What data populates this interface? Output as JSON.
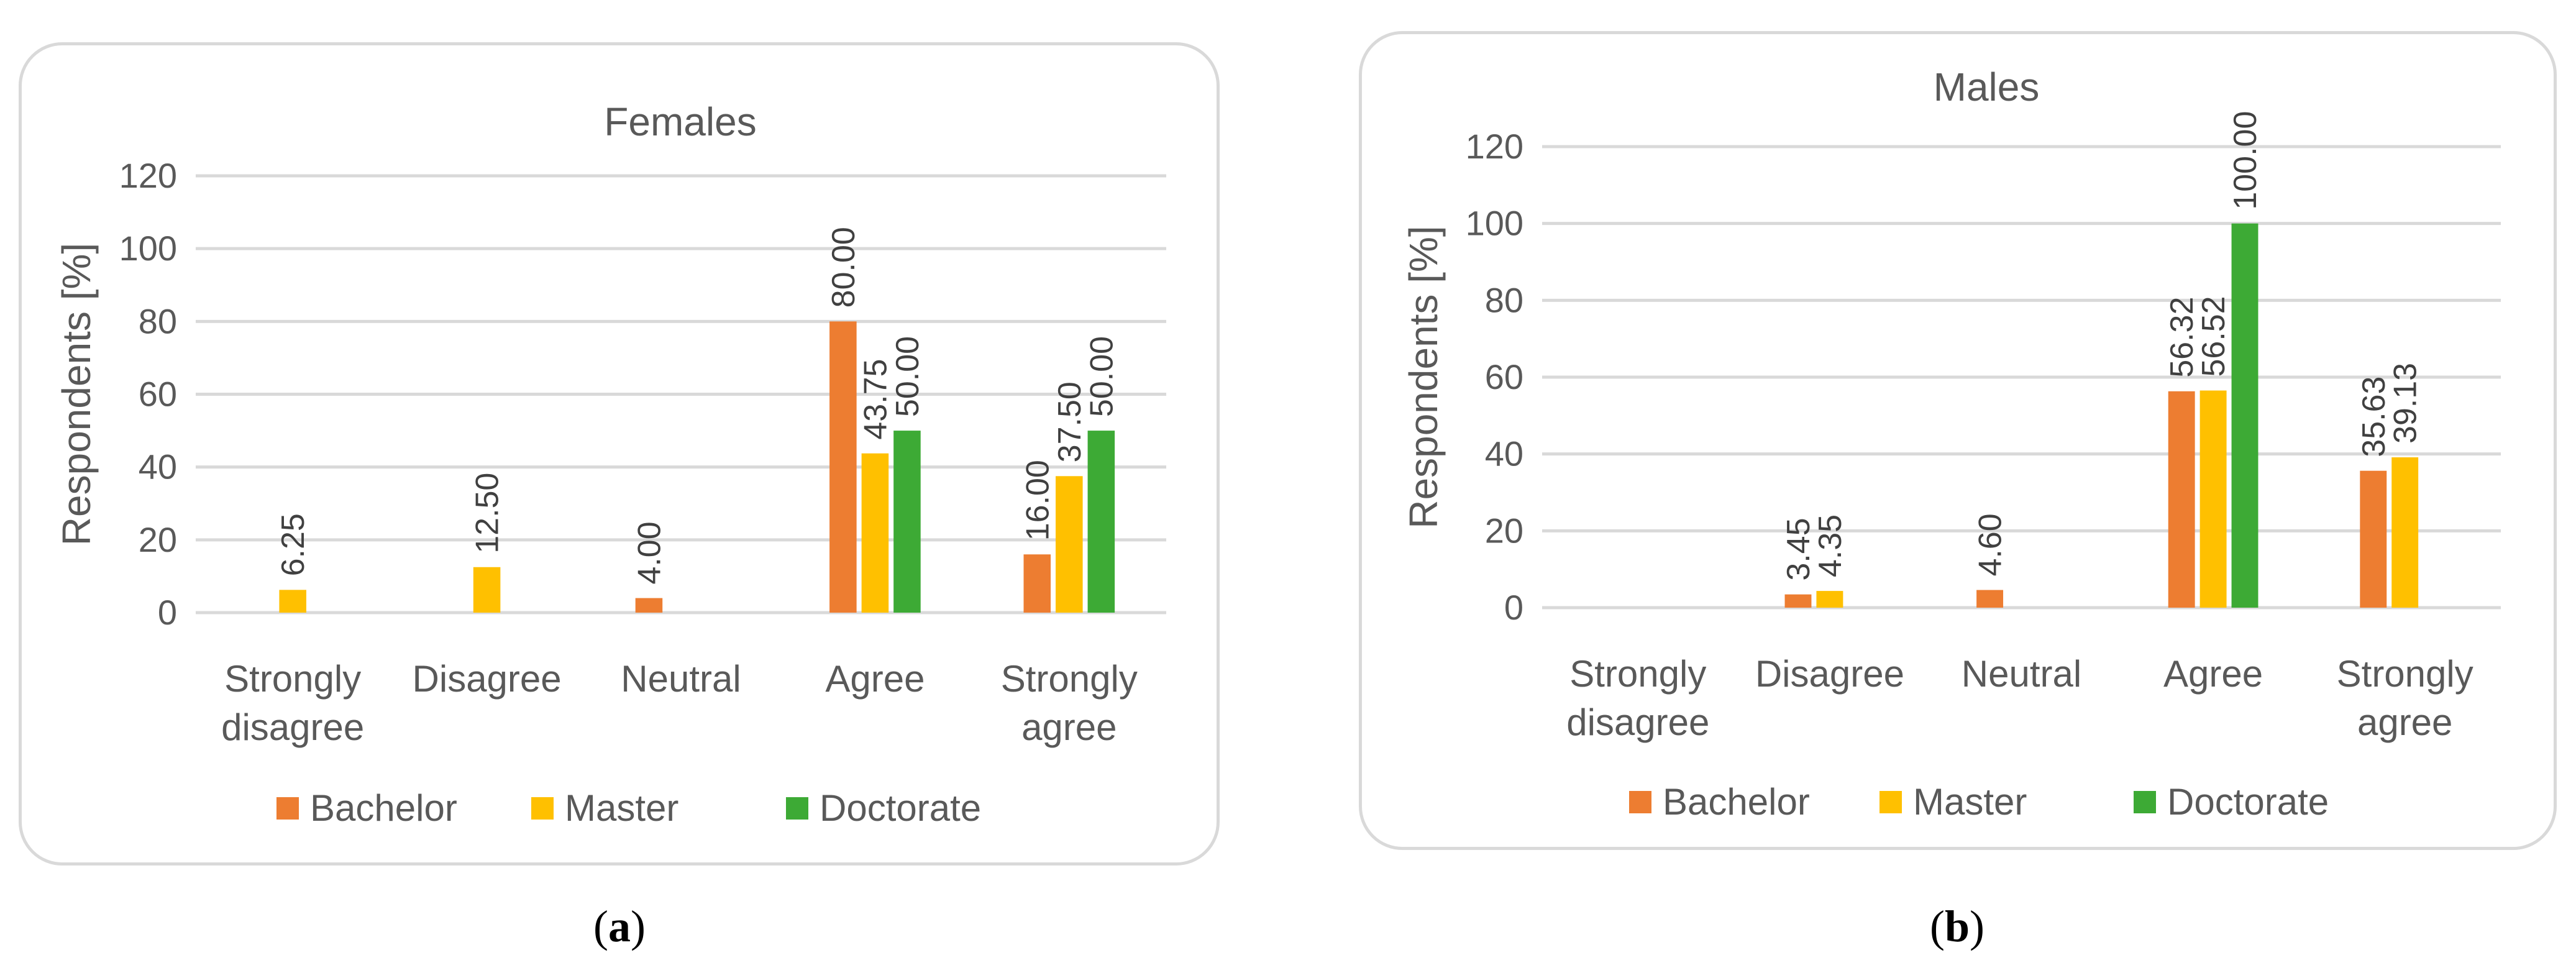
{
  "chart_data": [
    {
      "type": "bar",
      "title": "Females",
      "xlabel": "",
      "ylabel": "Respondents [%]",
      "ylim": [
        0,
        120
      ],
      "yticks": [
        "0",
        "20",
        "40",
        "60",
        "80",
        "100",
        "120"
      ],
      "grid": true,
      "legend_position": "bottom",
      "categories": [
        [
          "Strongly",
          "disagree"
        ],
        [
          "Disagree"
        ],
        [
          "Neutral"
        ],
        [
          "Agree"
        ],
        [
          "Strongly",
          "agree"
        ]
      ],
      "series": [
        {
          "name": "Bachelor",
          "color": "#ed7d31",
          "values": [
            null,
            null,
            4.0,
            80.0,
            16.0
          ],
          "labels": [
            null,
            null,
            "4.00",
            "80.00",
            "16.00"
          ]
        },
        {
          "name": "Master",
          "color": "#ffc000",
          "values": [
            6.25,
            12.5,
            null,
            43.75,
            37.5
          ],
          "labels": [
            "6.25",
            "12.50",
            null,
            "43.75",
            "37.50"
          ]
        },
        {
          "name": "Doctorate",
          "color": "#3daa35",
          "values": [
            null,
            null,
            null,
            50.0,
            50.0
          ],
          "labels": [
            null,
            null,
            null,
            "50.00",
            "50.00"
          ]
        }
      ],
      "caption": "(a)",
      "caption_letter": "a"
    },
    {
      "type": "bar",
      "title": "Males",
      "xlabel": "",
      "ylabel": "Respondents [%]",
      "ylim": [
        0,
        120
      ],
      "yticks": [
        "0",
        "20",
        "40",
        "60",
        "80",
        "100",
        "120"
      ],
      "grid": true,
      "legend_position": "bottom",
      "categories": [
        [
          "Strongly",
          "disagree"
        ],
        [
          "Disagree"
        ],
        [
          "Neutral"
        ],
        [
          "Agree"
        ],
        [
          "Strongly",
          "agree"
        ]
      ],
      "series": [
        {
          "name": "Bachelor",
          "color": "#ed7d31",
          "values": [
            null,
            3.45,
            4.6,
            56.32,
            35.63
          ],
          "labels": [
            null,
            "3.45",
            "4.60",
            "56.32",
            "35.63"
          ]
        },
        {
          "name": "Master",
          "color": "#ffc000",
          "values": [
            null,
            4.35,
            null,
            56.52,
            39.13
          ],
          "labels": [
            null,
            "4.35",
            null,
            "56.52",
            "39.13"
          ]
        },
        {
          "name": "Doctorate",
          "color": "#3daa35",
          "values": [
            null,
            null,
            null,
            100.0,
            null
          ],
          "labels": [
            null,
            null,
            null,
            "100.00",
            null
          ]
        }
      ],
      "caption": "(b)",
      "caption_letter": "b"
    }
  ]
}
